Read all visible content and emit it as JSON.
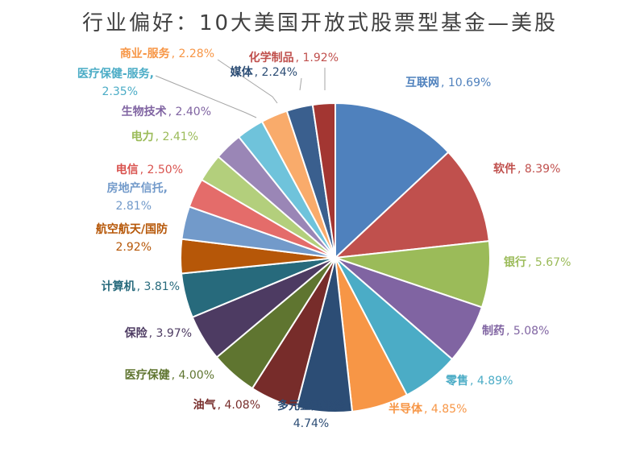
{
  "chart_data": {
    "type": "pie",
    "title": "行业偏好：10大美国开放式股票型基金—美股",
    "slices": [
      {
        "label": "互联网",
        "value": 10.69,
        "display": "10.69%",
        "color": "#4F81BD",
        "label_color": "#4F81BD"
      },
      {
        "label": "软件",
        "value": 8.39,
        "display": "8.39%",
        "color": "#C0504D",
        "label_color": "#C0504D"
      },
      {
        "label": "银行",
        "value": 5.67,
        "display": "5.67%",
        "color": "#9BBB59",
        "label_color": "#9BBB59"
      },
      {
        "label": "制药",
        "value": 5.08,
        "display": "5.08%",
        "color": "#8064A2",
        "label_color": "#8064A2"
      },
      {
        "label": "零售",
        "value": 4.89,
        "display": "4.89%",
        "color": "#4BACC6",
        "label_color": "#4BACC6"
      },
      {
        "label": "半导体",
        "value": 4.85,
        "display": "4.85%",
        "color": "#F79646",
        "label_color": "#F79646"
      },
      {
        "label": "多元金融服务",
        "value": 4.74,
        "display": "4.74%",
        "color": "#2C4D75",
        "label_color": "#2C4D75"
      },
      {
        "label": "油气",
        "value": 4.08,
        "display": "4.08%",
        "color": "#772C2A",
        "label_color": "#772C2A"
      },
      {
        "label": "医疗保健",
        "value": 4.0,
        "display": "4.00%",
        "color": "#5F7530",
        "label_color": "#5F7530"
      },
      {
        "label": "保险",
        "value": 3.97,
        "display": "3.97%",
        "color": "#4D3B62",
        "label_color": "#4D3B62"
      },
      {
        "label": "计算机",
        "value": 3.81,
        "display": "3.81%",
        "color": "#276A7C",
        "label_color": "#276A7C"
      },
      {
        "label": "航空航天/国防",
        "value": 2.92,
        "display": "2.92%",
        "color": "#B65708",
        "label_color": "#B65708"
      },
      {
        "label": "房地产信托,",
        "value": 2.81,
        "display": "2.81%",
        "color": "#729ACA",
        "label_color": "#729ACA"
      },
      {
        "label": "电信",
        "value": 2.5,
        "display": "2.50%",
        "color": "#E46C6A",
        "label_color": "#D9534F"
      },
      {
        "label": "电力",
        "value": 2.41,
        "display": "2.41%",
        "color": "#B3CF7C",
        "label_color": "#9BBB59"
      },
      {
        "label": "生物技术",
        "value": 2.4,
        "display": "2.40%",
        "color": "#9A86B6",
        "label_color": "#8064A2"
      },
      {
        "label": "医疗保健-服务,",
        "value": 2.35,
        "display": "2.35%",
        "color": "#6FC3DB",
        "label_color": "#4BACC6"
      },
      {
        "label": "商业-服务",
        "value": 2.28,
        "display": "2.28%",
        "color": "#F9AB6B",
        "label_color": "#F79646"
      },
      {
        "label": "媒体",
        "value": 2.24,
        "display": "2.24%",
        "color": "#3A5F8E",
        "label_color": "#2C4D75"
      },
      {
        "label": "化学制品",
        "value": 1.92,
        "display": "1.92%",
        "color": "#A33632",
        "label_color": "#C0504D"
      }
    ]
  }
}
